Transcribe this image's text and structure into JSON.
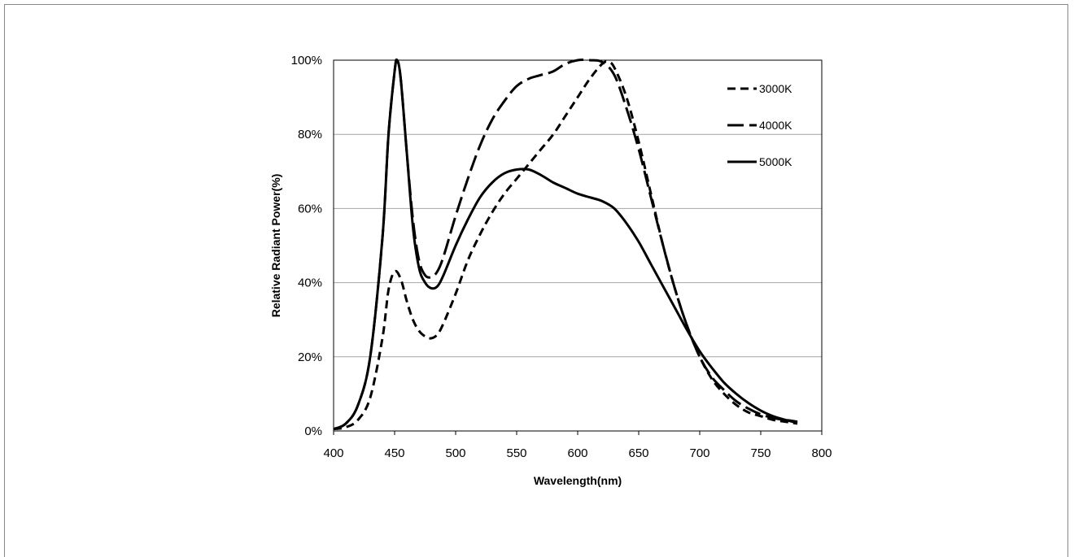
{
  "chart_data": {
    "type": "line",
    "title": "",
    "xlabel": "Wavelength(nm)",
    "ylabel": "Relative Radiant Power(%)",
    "xlim": [
      400,
      800
    ],
    "ylim": [
      0,
      100
    ],
    "x_ticks": [
      400,
      450,
      500,
      550,
      600,
      650,
      700,
      750,
      800
    ],
    "x_tick_labels": [
      "400",
      "450",
      "500",
      "550",
      "600",
      "650",
      "700",
      "750",
      "800"
    ],
    "y_ticks": [
      0,
      20,
      40,
      60,
      80,
      100
    ],
    "y_tick_labels": [
      "0%",
      "20%",
      "40%",
      "60%",
      "80%",
      "100%"
    ],
    "grid": "horizontal",
    "legend_position": "top-right",
    "series": [
      {
        "name": "3000K",
        "dash": "dashed",
        "points": [
          [
            400,
            0.5
          ],
          [
            410,
            1
          ],
          [
            420,
            3
          ],
          [
            430,
            9
          ],
          [
            440,
            25
          ],
          [
            445,
            38
          ],
          [
            450,
            43
          ],
          [
            455,
            41
          ],
          [
            460,
            35
          ],
          [
            465,
            30
          ],
          [
            470,
            27
          ],
          [
            475,
            25.5
          ],
          [
            480,
            25
          ],
          [
            485,
            26
          ],
          [
            490,
            29
          ],
          [
            500,
            37
          ],
          [
            510,
            46
          ],
          [
            520,
            53
          ],
          [
            530,
            59
          ],
          [
            540,
            64
          ],
          [
            550,
            68
          ],
          [
            560,
            72
          ],
          [
            570,
            76
          ],
          [
            580,
            80
          ],
          [
            590,
            85
          ],
          [
            600,
            90
          ],
          [
            610,
            95
          ],
          [
            620,
            99
          ],
          [
            625,
            99.5
          ],
          [
            630,
            98
          ],
          [
            640,
            90
          ],
          [
            650,
            78
          ],
          [
            660,
            64
          ],
          [
            670,
            50
          ],
          [
            680,
            38
          ],
          [
            690,
            28
          ],
          [
            700,
            20
          ],
          [
            710,
            14
          ],
          [
            720,
            10
          ],
          [
            730,
            7
          ],
          [
            740,
            5
          ],
          [
            750,
            4
          ],
          [
            760,
            3
          ],
          [
            770,
            2.5
          ],
          [
            780,
            2
          ]
        ]
      },
      {
        "name": "4000K",
        "dash": "long-dash",
        "points": [
          [
            400,
            0.5
          ],
          [
            410,
            2
          ],
          [
            420,
            7
          ],
          [
            430,
            20
          ],
          [
            440,
            52
          ],
          [
            445,
            80
          ],
          [
            450,
            97
          ],
          [
            452,
            100
          ],
          [
            455,
            95
          ],
          [
            460,
            75
          ],
          [
            465,
            57
          ],
          [
            470,
            46
          ],
          [
            475,
            42
          ],
          [
            480,
            41.5
          ],
          [
            485,
            43
          ],
          [
            490,
            47
          ],
          [
            500,
            58
          ],
          [
            510,
            68
          ],
          [
            520,
            77
          ],
          [
            530,
            84
          ],
          [
            540,
            89
          ],
          [
            550,
            93
          ],
          [
            560,
            95
          ],
          [
            570,
            96
          ],
          [
            580,
            97
          ],
          [
            590,
            99
          ],
          [
            600,
            100
          ],
          [
            610,
            100
          ],
          [
            620,
            99.5
          ],
          [
            630,
            96
          ],
          [
            640,
            87
          ],
          [
            650,
            76
          ],
          [
            660,
            63
          ],
          [
            670,
            50
          ],
          [
            680,
            38
          ],
          [
            690,
            28
          ],
          [
            700,
            20
          ],
          [
            710,
            14.5
          ],
          [
            720,
            11
          ],
          [
            730,
            8
          ],
          [
            740,
            6
          ],
          [
            750,
            4.5
          ],
          [
            760,
            3.5
          ],
          [
            770,
            3
          ],
          [
            780,
            2.5
          ]
        ]
      },
      {
        "name": "5000K",
        "dash": "solid",
        "points": [
          [
            400,
            0.5
          ],
          [
            410,
            2
          ],
          [
            420,
            7
          ],
          [
            430,
            20
          ],
          [
            440,
            52
          ],
          [
            445,
            80
          ],
          [
            450,
            97
          ],
          [
            452,
            100
          ],
          [
            455,
            95
          ],
          [
            460,
            75
          ],
          [
            465,
            55
          ],
          [
            470,
            44
          ],
          [
            475,
            40
          ],
          [
            480,
            38.5
          ],
          [
            485,
            39
          ],
          [
            490,
            42
          ],
          [
            500,
            50
          ],
          [
            510,
            57
          ],
          [
            520,
            63
          ],
          [
            530,
            67
          ],
          [
            540,
            69.5
          ],
          [
            550,
            70.5
          ],
          [
            560,
            70.5
          ],
          [
            570,
            69
          ],
          [
            580,
            67
          ],
          [
            590,
            65.5
          ],
          [
            600,
            64
          ],
          [
            610,
            63
          ],
          [
            620,
            62
          ],
          [
            630,
            60
          ],
          [
            640,
            56
          ],
          [
            650,
            51
          ],
          [
            660,
            45
          ],
          [
            670,
            39
          ],
          [
            680,
            33
          ],
          [
            690,
            27
          ],
          [
            700,
            21.5
          ],
          [
            710,
            17
          ],
          [
            720,
            13
          ],
          [
            730,
            10
          ],
          [
            740,
            7.5
          ],
          [
            750,
            5.5
          ],
          [
            760,
            4
          ],
          [
            770,
            3
          ],
          [
            780,
            2.2
          ]
        ]
      }
    ]
  }
}
